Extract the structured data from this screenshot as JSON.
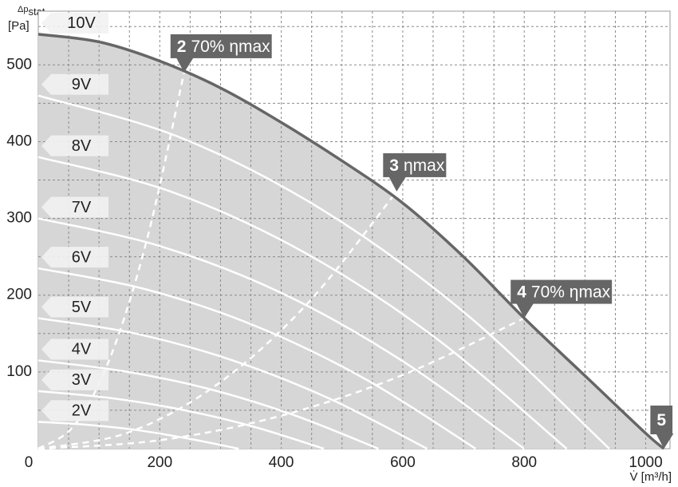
{
  "chart_data": {
    "type": "line",
    "ylabel": "Δp",
    "ylabel_sub": "stat",
    "ylabel_unit": "[Pa]",
    "xlabel": "V̇ [m³/h]",
    "xlim": [
      0,
      1040
    ],
    "ylim": [
      0,
      570
    ],
    "xticks": [
      0,
      200,
      400,
      600,
      800,
      1000
    ],
    "yticks": [
      0,
      100,
      200,
      300,
      400,
      500
    ],
    "xgrid": [
      50,
      100,
      150,
      200,
      250,
      300,
      350,
      400,
      450,
      500,
      550,
      600,
      650,
      700,
      750,
      800,
      850,
      900,
      950,
      1000
    ],
    "ygrid": [
      50,
      100,
      150,
      200,
      250,
      300,
      350,
      400,
      450,
      500,
      550
    ],
    "fill_color": "#d6d6d6",
    "series": [
      {
        "name": "10V",
        "color": "#666666",
        "x": [
          0,
          100,
          200,
          300,
          400,
          500,
          600,
          700,
          800,
          900,
          1000,
          1030
        ],
        "values": [
          540,
          530,
          505,
          470,
          425,
          375,
          320,
          250,
          170,
          95,
          20,
          0
        ]
      },
      {
        "name": "9V",
        "color": "#ffffff",
        "x": [
          0,
          235,
          470,
          705,
          940
        ],
        "values": [
          460,
          405,
          310,
          175,
          0
        ]
      },
      {
        "name": "8V",
        "color": "#ffffff",
        "x": [
          0,
          218,
          435,
          653,
          870
        ],
        "values": [
          380,
          335,
          257,
          145,
          0
        ]
      },
      {
        "name": "7V",
        "color": "#ffffff",
        "x": [
          0,
          200,
          400,
          600,
          800
        ],
        "values": [
          300,
          264,
          203,
          114,
          0
        ]
      },
      {
        "name": "6V",
        "color": "#ffffff",
        "x": [
          0,
          180,
          360,
          540,
          720
        ],
        "values": [
          235,
          207,
          159,
          90,
          0
        ]
      },
      {
        "name": "5V",
        "color": "#ffffff",
        "x": [
          0,
          160,
          320,
          480,
          640
        ],
        "values": [
          170,
          150,
          115,
          65,
          0
        ]
      },
      {
        "name": "4V",
        "color": "#ffffff",
        "x": [
          0,
          140,
          280,
          420,
          560
        ],
        "values": [
          115,
          101,
          78,
          44,
          0
        ]
      },
      {
        "name": "3V",
        "color": "#ffffff",
        "x": [
          0,
          118,
          235,
          353,
          470
        ],
        "values": [
          75,
          66,
          51,
          29,
          0
        ]
      },
      {
        "name": "2V",
        "color": "#ffffff",
        "x": [
          0,
          83,
          165,
          248,
          330
        ],
        "values": [
          35,
          31,
          24,
          13,
          0
        ]
      }
    ],
    "efficiency_lines": [
      {
        "x": [
          0,
          60,
          120,
          180,
          240
        ],
        "values": [
          0,
          31,
          122,
          276,
          490
        ]
      },
      {
        "x": [
          0,
          148,
          295,
          443,
          590
        ],
        "values": [
          0,
          21,
          84,
          189,
          335
        ]
      },
      {
        "x": [
          0,
          200,
          400,
          600,
          800
        ],
        "values": [
          0,
          11,
          43,
          96,
          170
        ]
      }
    ],
    "annotations": [
      {
        "number": "2",
        "text": "70% ηmax",
        "x": 240,
        "y": 490
      },
      {
        "number": "3",
        "text": "ηmax",
        "x": 590,
        "y": 335
      },
      {
        "number": "4",
        "text": "70% ηmax",
        "x": 800,
        "y": 170
      },
      {
        "number": "5",
        "x": 1030,
        "y": 0
      }
    ]
  }
}
